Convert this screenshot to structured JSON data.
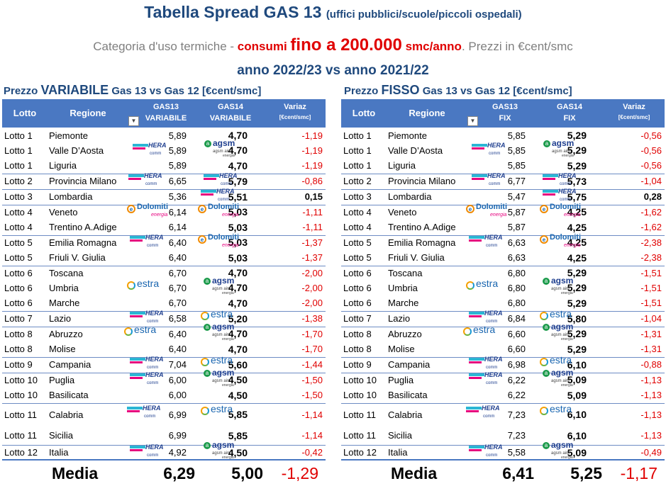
{
  "header": {
    "title_main": "Tabella Spread GAS 13",
    "title_sub": "(uffici  pubblici/scuole/piccoli ospedali)",
    "subtitle_pre": "Categoria d'uso termiche - ",
    "subtitle_red1": "consumi ",
    "subtitle_big": "fino a 200.000",
    "subtitle_red2": " smc/anno",
    "subtitle_post": ". Prezzi in €cent/smc",
    "year_line": "anno 2022/23 vs anno 2021/22"
  },
  "left": {
    "title_pre": "Prezzo ",
    "title_big": "VARIABILE",
    "title_post": " Gas 13 vs Gas 12 [€cent/smc]",
    "headers": {
      "lotto": "Lotto",
      "regione": "Regione",
      "g13_a": "GAS13",
      "g13_b": "VARIABILE",
      "g14_a": "GAS14",
      "g14_b": "VARIABILE",
      "var": "Variaz",
      "unit": "[€cent/smc]"
    },
    "rows": [
      {
        "lotto": "Lotto 1",
        "regione": "Piemonte",
        "g13": "5,89",
        "g14": "4,70",
        "var": "-1,19"
      },
      {
        "lotto": "Lotto 1",
        "regione": "Valle D’Aosta",
        "g13": "5,89",
        "g14": "4,70",
        "var": "-1,19"
      },
      {
        "lotto": "Lotto 1",
        "regione": "Liguria",
        "g13": "5,89",
        "g14": "4,70",
        "var": "-1,19"
      },
      {
        "lotto": "Lotto 2",
        "regione": "Provincia Milano",
        "g13": "6,65",
        "g14": "5,79",
        "var": "-0,86"
      },
      {
        "lotto": "Lotto 3",
        "regione": "Lombardia",
        "g13": "5,36",
        "g14": "5,51",
        "var": "0,15"
      },
      {
        "lotto": "Lotto 4",
        "regione": "Veneto",
        "g13": "6,14",
        "g14": "5,03",
        "var": "-1,11"
      },
      {
        "lotto": "Lotto 4",
        "regione": "Trentino A.Adige",
        "g13": "6,14",
        "g14": "5,03",
        "var": "-1,11"
      },
      {
        "lotto": "Lotto 5",
        "regione": "Emilia Romagna",
        "g13": "6,40",
        "g14": "5,03",
        "var": "-1,37"
      },
      {
        "lotto": "Lotto 5",
        "regione": "Friuli V. Giulia",
        "g13": "6,40",
        "g14": "5,03",
        "var": "-1,37"
      },
      {
        "lotto": "Lotto 6",
        "regione": "Toscana",
        "g13": "6,70",
        "g14": "4,70",
        "var": "-2,00"
      },
      {
        "lotto": "Lotto 6",
        "regione": "Umbria",
        "g13": "6,70",
        "g14": "4,70",
        "var": "-2,00"
      },
      {
        "lotto": "Lotto 6",
        "regione": "Marche",
        "g13": "6,70",
        "g14": "4,70",
        "var": "-2,00"
      },
      {
        "lotto": "Lotto 7",
        "regione": "Lazio",
        "g13": "6,58",
        "g14": "5,20",
        "var": "-1,38"
      },
      {
        "lotto": "Lotto 8",
        "regione": "Abruzzo",
        "g13": "6,40",
        "g14": "4,70",
        "var": "-1,70"
      },
      {
        "lotto": "Lotto 8",
        "regione": "Molise",
        "g13": "6,40",
        "g14": "4,70",
        "var": "-1,70"
      },
      {
        "lotto": "Lotto 9",
        "regione": "Campania",
        "g13": "7,04",
        "g14": "5,60",
        "var": "-1,44"
      },
      {
        "lotto": "Lotto 10",
        "regione": "Puglia",
        "g13": "6,00",
        "g14": "4,50",
        "var": "-1,50"
      },
      {
        "lotto": "Lotto 10",
        "regione": "Basilicata",
        "g13": "6,00",
        "g14": "4,50",
        "var": "-1,50"
      },
      {
        "lotto": "Lotto 11",
        "regione": "Calabria",
        "g13": "6,99",
        "g14": "5,85",
        "var": "-1,14"
      },
      {
        "lotto": "Lotto 11",
        "regione": "Sicilia",
        "g13": "6,99",
        "g14": "5,85",
        "var": "-1,14"
      },
      {
        "lotto": "Lotto 12",
        "regione": "Italia",
        "g13": "4,92",
        "g14": "4,50",
        "var": "-0,42"
      }
    ],
    "footer": {
      "label": "Media",
      "g13": "6,29",
      "g14": "5,00",
      "var": "-1,29"
    }
  },
  "right": {
    "title_pre": "Prezzo ",
    "title_big": "FISSO",
    "title_post": " Gas 13 vs Gas 12 [€cent/smc]",
    "headers": {
      "lotto": "Lotto",
      "regione": "Regione",
      "g13_a": "GAS13",
      "g13_b": "FIX",
      "g14_a": "GAS14",
      "g14_b": "FIX",
      "var": "Variaz",
      "unit": "[€cent/smc]"
    },
    "rows": [
      {
        "lotto": "Lotto 1",
        "regione": "Piemonte",
        "g13": "5,85",
        "g14": "5,29",
        "var": "-0,56"
      },
      {
        "lotto": "Lotto 1",
        "regione": "Valle D’Aosta",
        "g13": "5,85",
        "g14": "5,29",
        "var": "-0,56"
      },
      {
        "lotto": "Lotto 1",
        "regione": "Liguria",
        "g13": "5,85",
        "g14": "5,29",
        "var": "-0,56"
      },
      {
        "lotto": "Lotto 2",
        "regione": "Provincia Milano",
        "g13": "6,77",
        "g14": "5,73",
        "var": "-1,04"
      },
      {
        "lotto": "Lotto 3",
        "regione": "Lombardia",
        "g13": "5,47",
        "g14": "5,75",
        "var": "0,28"
      },
      {
        "lotto": "Lotto 4",
        "regione": "Veneto",
        "g13": "5,87",
        "g14": "4,25",
        "var": "-1,62"
      },
      {
        "lotto": "Lotto 4",
        "regione": "Trentino A.Adige",
        "g13": "5,87",
        "g14": "4,25",
        "var": "-1,62"
      },
      {
        "lotto": "Lotto 5",
        "regione": "Emilia Romagna",
        "g13": "6,63",
        "g14": "4,25",
        "var": "-2,38"
      },
      {
        "lotto": "Lotto 5",
        "regione": "Friuli V. Giulia",
        "g13": "6,63",
        "g14": "4,25",
        "var": "-2,38"
      },
      {
        "lotto": "Lotto 6",
        "regione": "Toscana",
        "g13": "6,80",
        "g14": "5,29",
        "var": "-1,51"
      },
      {
        "lotto": "Lotto 6",
        "regione": "Umbria",
        "g13": "6,80",
        "g14": "5,29",
        "var": "-1,51"
      },
      {
        "lotto": "Lotto 6",
        "regione": "Marche",
        "g13": "6,80",
        "g14": "5,29",
        "var": "-1,51"
      },
      {
        "lotto": "Lotto 7",
        "regione": "Lazio",
        "g13": "6,84",
        "g14": "5,80",
        "var": "-1,04"
      },
      {
        "lotto": "Lotto 8",
        "regione": "Abruzzo",
        "g13": "6,60",
        "g14": "5,29",
        "var": "-1,31"
      },
      {
        "lotto": "Lotto 8",
        "regione": "Molise",
        "g13": "6,60",
        "g14": "5,29",
        "var": "-1,31"
      },
      {
        "lotto": "Lotto 9",
        "regione": "Campania",
        "g13": "6,98",
        "g14": "6,10",
        "var": "-0,88"
      },
      {
        "lotto": "Lotto 10",
        "regione": "Puglia",
        "g13": "6,22",
        "g14": "5,09",
        "var": "-1,13"
      },
      {
        "lotto": "Lotto 10",
        "regione": "Basilicata",
        "g13": "6,22",
        "g14": "5,09",
        "var": "-1,13"
      },
      {
        "lotto": "Lotto 11",
        "regione": "Calabria",
        "g13": "7,23",
        "g14": "6,10",
        "var": "-1,13"
      },
      {
        "lotto": "Lotto 11",
        "regione": "Sicilia",
        "g13": "7,23",
        "g14": "6,10",
        "var": "-1,13"
      },
      {
        "lotto": "Lotto 12",
        "regione": "Italia",
        "g13": "5,58",
        "g14": "5,09",
        "var": "-0,49"
      }
    ],
    "footer": {
      "label": "Media",
      "g13": "6,41",
      "g14": "5,25",
      "var": "-1,17"
    }
  },
  "logos": {
    "hera": {
      "name": "hera-comm-logo",
      "line1": "HERA",
      "line2": "comm"
    },
    "agsm": {
      "name": "agsm-aim-logo",
      "line1": "agsm",
      "line2": "agsm aim",
      "line3": "energia"
    },
    "dolomiti": {
      "name": "dolomiti-energia-logo",
      "line1": "Dolomiti",
      "line2": "energia"
    },
    "estra": {
      "name": "estra-logo",
      "line1": "estra"
    }
  },
  "colors": {
    "header_blue": "#4a78c2",
    "title_blue": "#1f497d",
    "negative_red": "#e00000"
  }
}
